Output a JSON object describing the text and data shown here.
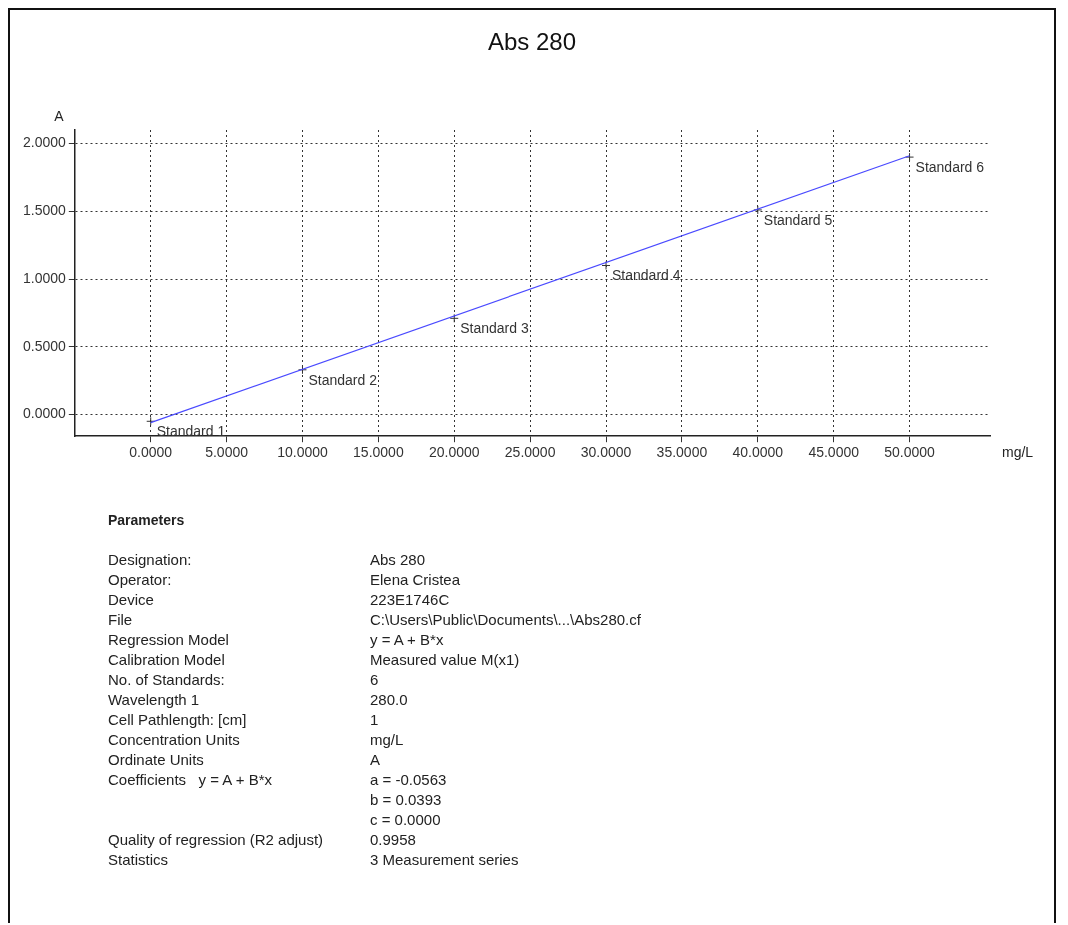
{
  "chart_data": {
    "type": "scatter",
    "title": "Abs 280",
    "xlabel": "mg/L",
    "ylabel": "A",
    "xlim": [
      -5,
      55.3
    ],
    "ylim": [
      -0.16,
      2.1
    ],
    "xticks": [
      {
        "value": 0,
        "label": "0.0000"
      },
      {
        "value": 5,
        "label": "5.0000"
      },
      {
        "value": 10,
        "label": "10.0000"
      },
      {
        "value": 15,
        "label": "15.0000"
      },
      {
        "value": 20,
        "label": "20.0000"
      },
      {
        "value": 25,
        "label": "25.0000"
      },
      {
        "value": 30,
        "label": "30.0000"
      },
      {
        "value": 35,
        "label": "35.0000"
      },
      {
        "value": 40,
        "label": "40.0000"
      },
      {
        "value": 45,
        "label": "45.0000"
      },
      {
        "value": 50,
        "label": "50.0000"
      }
    ],
    "yticks": [
      {
        "value": 0,
        "label": "0.0000"
      },
      {
        "value": 0.5,
        "label": "0.5000"
      },
      {
        "value": 1,
        "label": "1.0000"
      },
      {
        "value": 1.5,
        "label": "1.5000"
      },
      {
        "value": 2,
        "label": "2.0000"
      }
    ],
    "grid": true,
    "series": [
      {
        "type": "line",
        "color": "#4a4aff",
        "x": [
          0,
          50
        ],
        "values": [
          -0.06,
          1.91
        ],
        "marker": "none"
      },
      {
        "color": "#333333",
        "x": [
          0,
          10,
          20,
          30,
          40,
          50
        ],
        "values": [
          -0.05,
          0.33,
          0.71,
          1.1,
          1.51,
          1.9
        ],
        "marker": "cross"
      }
    ],
    "annotations": [
      {
        "text": "Standard 1",
        "x": 0,
        "y": -0.05
      },
      {
        "text": "Standard 2",
        "x": 10,
        "y": 0.33
      },
      {
        "text": "Standard 3",
        "x": 20,
        "y": 0.71
      },
      {
        "text": "Standard 4",
        "x": 30,
        "y": 1.1
      },
      {
        "text": "Standard 5",
        "x": 40,
        "y": 1.51
      },
      {
        "text": "Standard 6",
        "x": 50,
        "y": 1.9
      },
      "Parameters",
      "Designation:\tAbs 280",
      "Operator:\tElena Cristea",
      "Device\t223E1746C",
      "File\tC:\\Users\\Public\\Documents\\...\\Abs280.cf",
      "Regression Model\ty = A + B*x",
      "Calibration Model\tMeasured value M(x1)",
      "No. of Standards:\t6",
      "Wavelength 1\t280.0",
      "Cell Pathlength: [cm]\t1",
      "Concentration Units\tmg/L",
      "Ordinate Units\tA",
      "Coefficients   y = A + B*x\ta = -0.0563",
      "\tb = 0.0393",
      "\tc = 0.0000",
      "Quality of regression (R2 adjust)\t0.9958",
      "Statistics\t3 Measurement series"
    ]
  }
}
